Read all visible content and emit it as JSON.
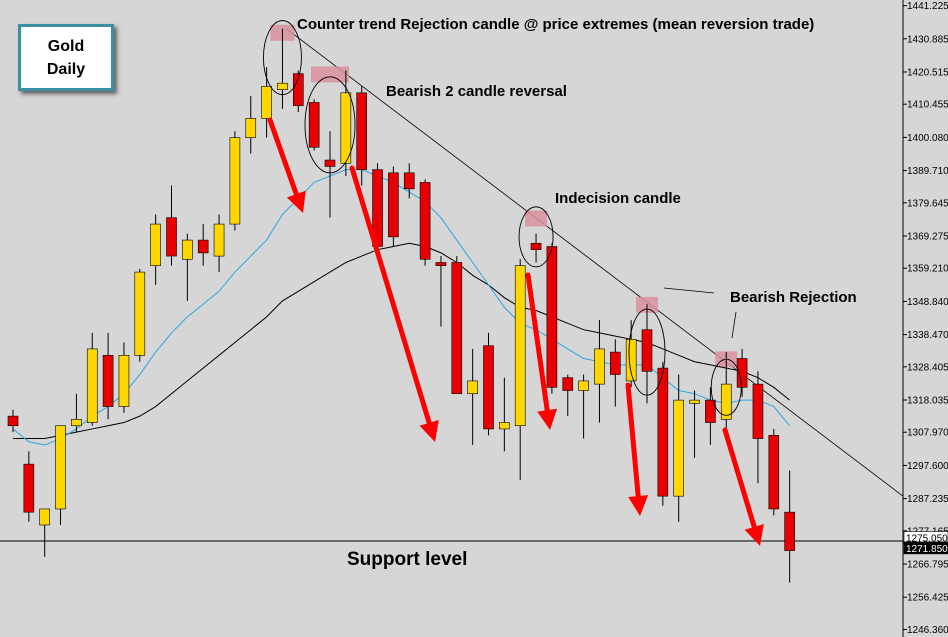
{
  "chart_data": {
    "type": "candlestick",
    "instrument_label": "Gold",
    "timeframe_label": "Daily",
    "colors": {
      "background": "#d6d6d6",
      "bull_candle": "#ffd700",
      "bear_candle": "#e80000",
      "ma_fast": "#29a8e0",
      "ma_slow": "#000000",
      "arrow": "#ff0000",
      "highlight": "#d9909e"
    },
    "y_axis": {
      "position": "right",
      "range": [
        1244,
        1443
      ],
      "tick_labels": [
        "1441.225",
        "1430.885",
        "1420.515",
        "1410.455",
        "1400.080",
        "1389.710",
        "1379.645",
        "1369.275",
        "1359.210",
        "1348.840",
        "1338.470",
        "1328.405",
        "1318.035",
        "1307.970",
        "1297.600",
        "1287.235",
        "1277.165",
        "1266.795",
        "1256.425",
        "1246.360"
      ],
      "price_tags": [
        "1275.050",
        "1271.850"
      ]
    },
    "candles": [
      {
        "o": 1313,
        "h": 1315,
        "l": 1308,
        "c": 1310
      },
      {
        "o": 1298,
        "h": 1302,
        "l": 1280,
        "c": 1283
      },
      {
        "o": 1279,
        "h": 1284,
        "l": 1269,
        "c": 1284
      },
      {
        "o": 1284,
        "h": 1310,
        "l": 1279,
        "c": 1310
      },
      {
        "o": 1310,
        "h": 1320,
        "l": 1308,
        "c": 1312
      },
      {
        "o": 1311,
        "h": 1339,
        "l": 1310,
        "c": 1334
      },
      {
        "o": 1332,
        "h": 1339,
        "l": 1312,
        "c": 1316
      },
      {
        "o": 1316,
        "h": 1336,
        "l": 1314,
        "c": 1332
      },
      {
        "o": 1332,
        "h": 1359,
        "l": 1330,
        "c": 1358
      },
      {
        "o": 1360,
        "h": 1376,
        "l": 1354,
        "c": 1373
      },
      {
        "o": 1375,
        "h": 1385,
        "l": 1360,
        "c": 1363
      },
      {
        "o": 1362,
        "h": 1370,
        "l": 1349,
        "c": 1368
      },
      {
        "o": 1368,
        "h": 1373,
        "l": 1360,
        "c": 1364
      },
      {
        "o": 1363,
        "h": 1376,
        "l": 1358,
        "c": 1373
      },
      {
        "o": 1373,
        "h": 1402,
        "l": 1371,
        "c": 1400
      },
      {
        "o": 1400,
        "h": 1413,
        "l": 1395,
        "c": 1406
      },
      {
        "o": 1406,
        "h": 1422,
        "l": 1400,
        "c": 1416
      },
      {
        "o": 1415,
        "h": 1434,
        "l": 1409,
        "c": 1417
      },
      {
        "o": 1420,
        "h": 1421,
        "l": 1408,
        "c": 1410
      },
      {
        "o": 1411,
        "h": 1412,
        "l": 1396,
        "c": 1397
      },
      {
        "o": 1393,
        "h": 1402,
        "l": 1375,
        "c": 1391
      },
      {
        "o": 1392,
        "h": 1421,
        "l": 1388,
        "c": 1414
      },
      {
        "o": 1414,
        "h": 1416,
        "l": 1385,
        "c": 1390
      },
      {
        "o": 1390,
        "h": 1392,
        "l": 1364,
        "c": 1366
      },
      {
        "o": 1389,
        "h": 1391,
        "l": 1366,
        "c": 1369
      },
      {
        "o": 1389,
        "h": 1392,
        "l": 1381,
        "c": 1384
      },
      {
        "o": 1386,
        "h": 1387,
        "l": 1360,
        "c": 1362
      },
      {
        "o": 1361,
        "h": 1363,
        "l": 1341,
        "c": 1360
      },
      {
        "o": 1361,
        "h": 1363,
        "l": 1321,
        "c": 1320
      },
      {
        "o": 1320,
        "h": 1334,
        "l": 1304,
        "c": 1324
      },
      {
        "o": 1335,
        "h": 1339,
        "l": 1307,
        "c": 1309
      },
      {
        "o": 1309,
        "h": 1325,
        "l": 1302,
        "c": 1311
      },
      {
        "o": 1310,
        "h": 1362,
        "l": 1293,
        "c": 1360
      },
      {
        "o": 1367,
        "h": 1370,
        "l": 1361,
        "c": 1365
      },
      {
        "o": 1366,
        "h": 1367,
        "l": 1320,
        "c": 1322
      },
      {
        "o": 1325,
        "h": 1326,
        "l": 1313,
        "c": 1321
      },
      {
        "o": 1321,
        "h": 1326,
        "l": 1306,
        "c": 1324
      },
      {
        "o": 1323,
        "h": 1343,
        "l": 1311,
        "c": 1334
      },
      {
        "o": 1333,
        "h": 1337,
        "l": 1316,
        "c": 1326
      },
      {
        "o": 1324,
        "h": 1343,
        "l": 1322,
        "c": 1337
      },
      {
        "o": 1340,
        "h": 1348,
        "l": 1317,
        "c": 1327
      },
      {
        "o": 1328,
        "h": 1330,
        "l": 1285,
        "c": 1288
      },
      {
        "o": 1288,
        "h": 1326,
        "l": 1280,
        "c": 1318
      },
      {
        "o": 1317,
        "h": 1321,
        "l": 1300,
        "c": 1318
      },
      {
        "o": 1318,
        "h": 1322,
        "l": 1304,
        "c": 1311
      },
      {
        "o": 1312,
        "h": 1333,
        "l": 1307,
        "c": 1323
      },
      {
        "o": 1331,
        "h": 1334,
        "l": 1319,
        "c": 1322
      },
      {
        "o": 1323,
        "h": 1327,
        "l": 1292,
        "c": 1306
      },
      {
        "o": 1307,
        "h": 1309,
        "l": 1282,
        "c": 1284
      },
      {
        "o": 1283,
        "h": 1296,
        "l": 1261,
        "c": 1271
      }
    ],
    "ma_fast": [
      1309,
      1305,
      1304,
      1306,
      1309,
      1313,
      1316,
      1320,
      1326,
      1333,
      1339,
      1344,
      1348,
      1352,
      1358,
      1363,
      1368,
      1376,
      1381,
      1386,
      1388,
      1390,
      1390,
      1388,
      1386,
      1383,
      1380,
      1375,
      1368,
      1361,
      1354,
      1347,
      1342,
      1340,
      1337,
      1334,
      1331,
      1330,
      1329,
      1329,
      1329,
      1325,
      1321,
      1320,
      1318,
      1317,
      1318,
      1318,
      1316,
      1310
    ],
    "ma_slow": [
      1306,
      1306,
      1306,
      1307,
      1308,
      1309,
      1310,
      1311,
      1313,
      1316,
      1320,
      1324,
      1328,
      1332,
      1336,
      1340,
      1344,
      1349,
      1352,
      1355,
      1358,
      1361,
      1363,
      1365,
      1366,
      1367,
      1366,
      1364,
      1361,
      1357,
      1354,
      1350,
      1347,
      1346,
      1344,
      1342,
      1340,
      1339,
      1338,
      1337,
      1336,
      1334,
      1332,
      1330,
      1329,
      1328,
      1327,
      1325,
      1322,
      1318
    ],
    "support_level": 1274,
    "annotations": [
      {
        "text": "Counter trend Rejection candle @ price extremes (mean reversion trade)"
      },
      {
        "text": "Bearish 2 candle reversal"
      },
      {
        "text": "Indecision candle"
      },
      {
        "text": "Bearish Rejection"
      },
      {
        "text": "Support level"
      }
    ]
  }
}
